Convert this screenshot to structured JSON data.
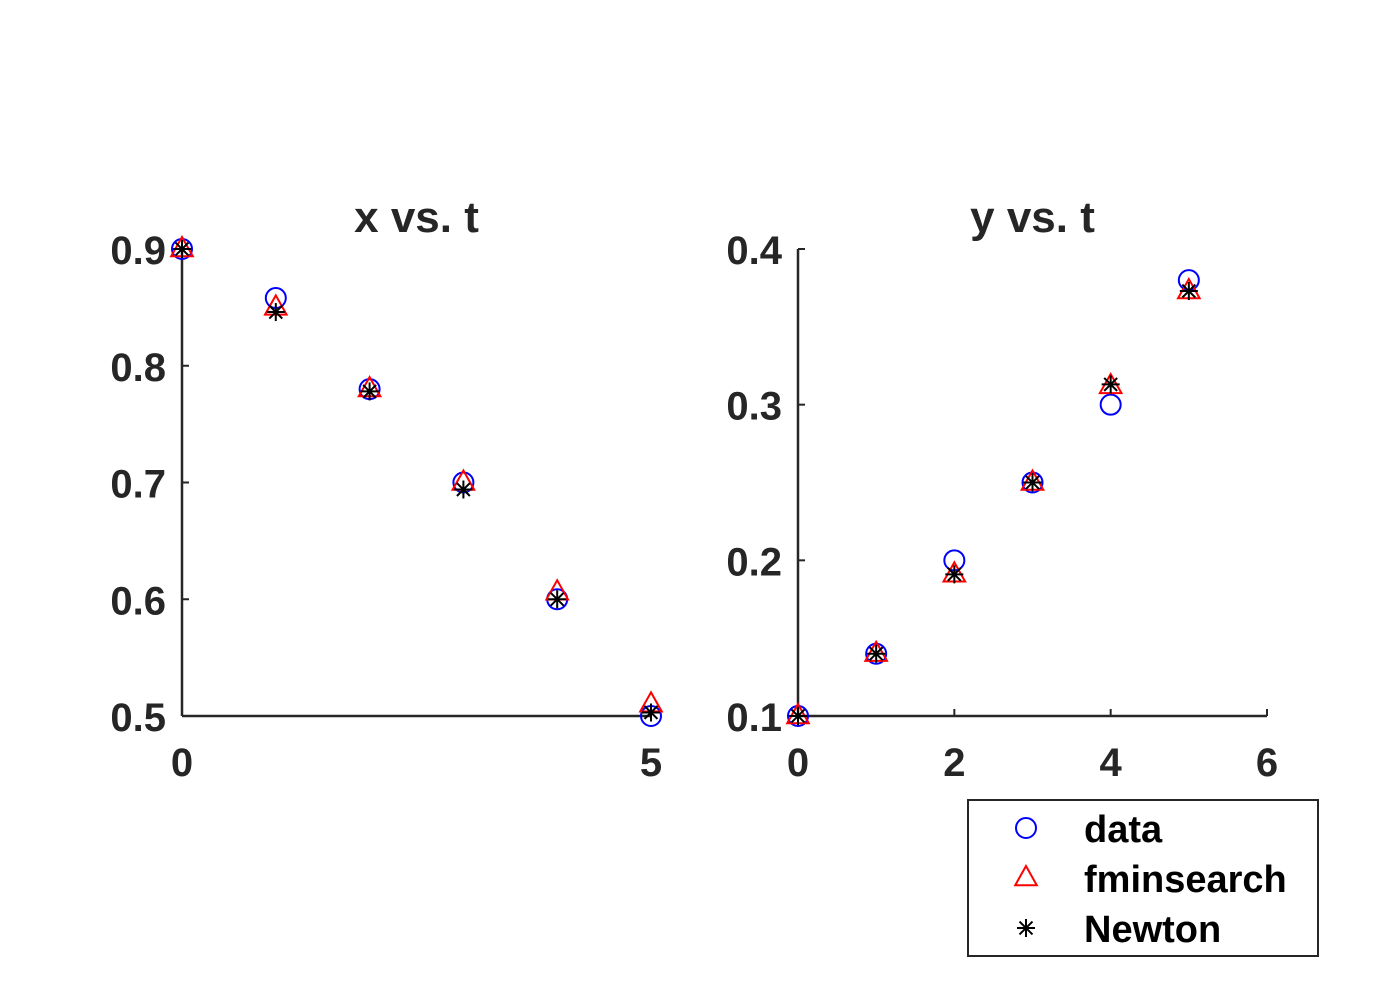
{
  "chart_data": [
    {
      "type": "scatter",
      "title": "x vs. t",
      "xlabel": "",
      "ylabel": "",
      "xlim": [
        0,
        5
      ],
      "ylim": [
        0.5,
        0.9
      ],
      "xticks": [
        "0",
        "5"
      ],
      "yticks": [
        "0.5",
        "0.6",
        "0.7",
        "0.8",
        "0.9"
      ],
      "x": [
        0,
        1,
        2,
        3,
        4,
        5
      ],
      "series": [
        {
          "name": "data",
          "marker": "circle",
          "color": "#0000ff",
          "values": [
            0.9,
            0.858,
            0.78,
            0.7,
            0.6,
            0.5
          ]
        },
        {
          "name": "fminsearch",
          "marker": "triangle",
          "color": "#ff0000",
          "values": [
            0.9,
            0.85,
            0.78,
            0.7,
            0.606,
            0.51
          ]
        },
        {
          "name": "Newton",
          "marker": "asterisk",
          "color": "#000000",
          "values": [
            0.9,
            0.846,
            0.778,
            0.694,
            0.6,
            0.503
          ]
        }
      ]
    },
    {
      "type": "scatter",
      "title": "y vs. t",
      "xlabel": "",
      "ylabel": "",
      "xlim": [
        0,
        6
      ],
      "ylim": [
        0.1,
        0.4
      ],
      "xticks": [
        "0",
        "2",
        "4",
        "6"
      ],
      "yticks": [
        "0.1",
        "0.2",
        "0.3",
        "0.4"
      ],
      "x": [
        0,
        1,
        2,
        3,
        4,
        5
      ],
      "series": [
        {
          "name": "data",
          "marker": "circle",
          "color": "#0000ff",
          "values": [
            0.1,
            0.14,
            0.2,
            0.25,
            0.3,
            0.38
          ]
        },
        {
          "name": "fminsearch",
          "marker": "triangle",
          "color": "#ff0000",
          "values": [
            0.1,
            0.14,
            0.191,
            0.25,
            0.312,
            0.373
          ]
        },
        {
          "name": "Newton",
          "marker": "asterisk",
          "color": "#000000",
          "values": [
            0.1,
            0.14,
            0.191,
            0.25,
            0.313,
            0.373
          ]
        }
      ]
    }
  ],
  "legend": {
    "placement": "bottom-right",
    "entries": [
      {
        "label": "data",
        "marker": "circle",
        "color": "#0000ff"
      },
      {
        "label": "fminsearch",
        "marker": "triangle",
        "color": "#ff0000"
      },
      {
        "label": "Newton",
        "marker": "asterisk",
        "color": "#000000"
      }
    ]
  }
}
